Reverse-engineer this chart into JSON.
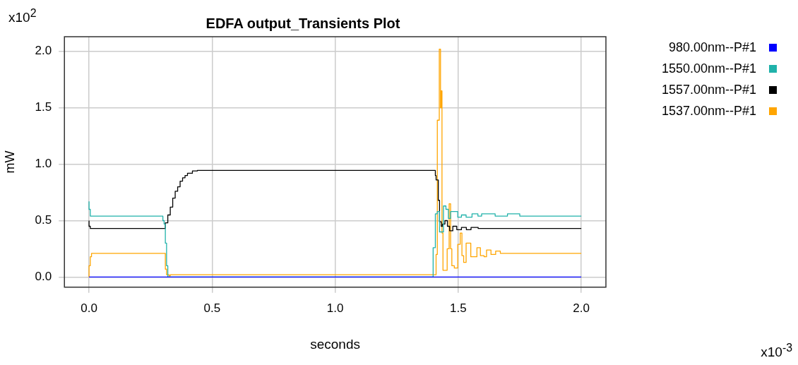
{
  "chart_data": {
    "type": "step",
    "title": "EDFA output_Transients Plot",
    "xlabel": "seconds",
    "ylabel": "mW",
    "annotations": [
      "x10$^{2}$",
      "x10$^{-3}$"
    ],
    "xlim": [
      -0.1,
      2.1
    ],
    "ylim": [
      -0.09,
      2.13
    ],
    "xticks": [
      {
        "value": 0,
        "label": "0.0"
      },
      {
        "value": 0.5,
        "label": "0.5"
      },
      {
        "value": 1,
        "label": "1.0"
      },
      {
        "value": 1.5,
        "label": "1.5"
      },
      {
        "value": 2,
        "label": "2.0"
      }
    ],
    "yticks": [
      {
        "value": 0,
        "label": "0.0"
      },
      {
        "value": 0.5,
        "label": "0.5"
      },
      {
        "value": 1,
        "label": "1.0"
      },
      {
        "value": 1.5,
        "label": "1.5"
      },
      {
        "value": 2,
        "label": "2.0"
      }
    ],
    "grid": true,
    "legend": "right",
    "marker": "none",
    "line_style": "solid",
    "series": [
      {
        "name": "980.00nm--P#1",
        "color": "#0000ff",
        "x": [
          0,
          2
        ],
        "values": [
          0,
          0
        ]
      },
      {
        "name": "1550.00nm--P#1",
        "color": "#20b2aa",
        "x": [
          0,
          0.005,
          0.01,
          0.3,
          0.305,
          0.31,
          0.315,
          0.32,
          0.325,
          1.398,
          1.407,
          1.415,
          1.424,
          1.431,
          1.44,
          1.45,
          1.46,
          1.469,
          1.484,
          1.498,
          1.513,
          1.532,
          1.556,
          1.58,
          1.595,
          1.65,
          1.7,
          1.75,
          2
        ],
        "values": [
          0.67,
          0.6,
          0.54,
          0.54,
          0.5,
          0.47,
          0.3,
          0.1,
          0,
          0,
          0.26,
          0.56,
          0.58,
          0.4,
          0.4,
          0.63,
          0.6,
          0.52,
          0.58,
          0.58,
          0.53,
          0.55,
          0.53,
          0.56,
          0.54,
          0.56,
          0.54,
          0.56,
          0.54
        ]
      },
      {
        "name": "1557.00nm--P#1",
        "color": "#000000",
        "x": [
          0,
          0.005,
          0.01,
          0.31,
          0.32,
          0.33,
          0.34,
          0.35,
          0.36,
          0.37,
          0.38,
          0.39,
          0.4,
          0.42,
          0.44,
          0.47,
          1.407,
          1.41,
          1.419,
          1.424,
          1.431,
          1.436,
          1.446,
          1.456,
          1.465,
          1.478,
          1.494,
          1.513,
          1.533,
          1.552,
          1.581,
          1.6,
          2
        ],
        "values": [
          0.5,
          0.45,
          0.43,
          0.43,
          0.48,
          0.55,
          0.62,
          0.7,
          0.76,
          0.8,
          0.85,
          0.88,
          0.9,
          0.92,
          0.94,
          0.945,
          0.945,
          0.9,
          0.86,
          0.68,
          0.49,
          0.45,
          0.47,
          0.5,
          0.45,
          0.41,
          0.45,
          0.42,
          0.44,
          0.42,
          0.44,
          0.43,
          0.43
        ]
      },
      {
        "name": "1537.00nm--P#1",
        "color": "#ffa500",
        "x": [
          0,
          0.005,
          0.01,
          0.015,
          0.31,
          0.315,
          0.325,
          0.33,
          0.567,
          1.41,
          1.415,
          1.423,
          1.428,
          1.431,
          1.434,
          1.438,
          1.445,
          1.455,
          1.463,
          1.469,
          1.474,
          1.484,
          1.498,
          1.508,
          1.515,
          1.522,
          1.532,
          1.551,
          1.566,
          1.576,
          1.59,
          1.605,
          1.615,
          1.633,
          1.652,
          1.671,
          1.71,
          2
        ],
        "values": [
          0,
          0.1,
          0.18,
          0.21,
          0.21,
          0.07,
          0.02,
          0.01,
          0.02,
          0.02,
          0.2,
          1.39,
          2.02,
          1.5,
          1.65,
          0.39,
          0.06,
          0.06,
          0.25,
          0.65,
          0.25,
          0.1,
          0.08,
          0.29,
          0.39,
          0.19,
          0.13,
          0.3,
          0.18,
          0.18,
          0.26,
          0.19,
          0.18,
          0.24,
          0.2,
          0.23,
          0.21,
          0.21
        ]
      }
    ]
  }
}
